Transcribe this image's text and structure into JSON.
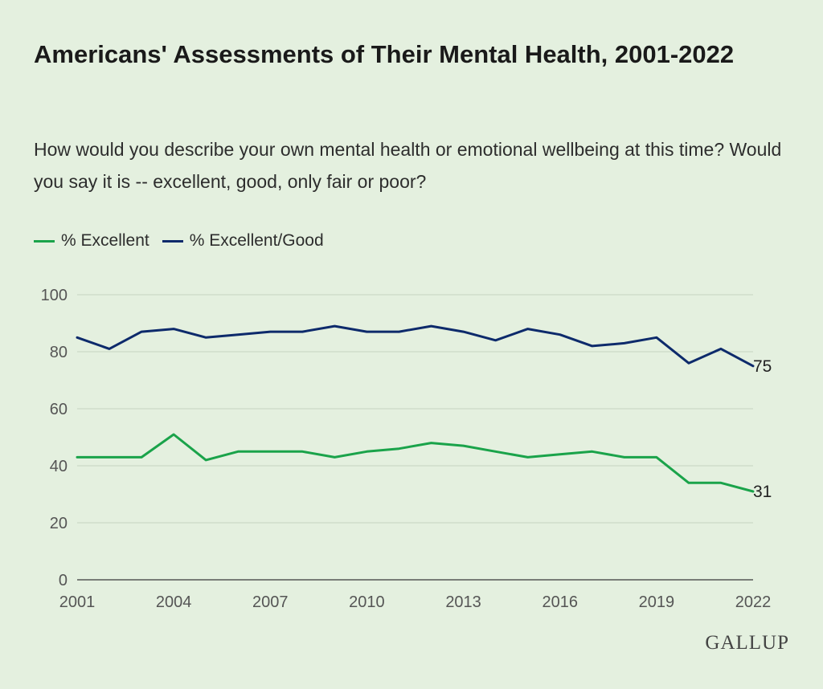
{
  "chart_data": {
    "type": "line",
    "title": "Americans' Assessments of Their Mental Health, 2001-2022",
    "subtitle": "How would you describe your own mental health or emotional wellbeing at this time? Would you say it is -- excellent, good, only fair or poor?",
    "xlabel": "",
    "ylabel": "",
    "x": [
      2001,
      2002,
      2003,
      2004,
      2005,
      2006,
      2007,
      2008,
      2009,
      2010,
      2011,
      2012,
      2013,
      2014,
      2015,
      2016,
      2017,
      2018,
      2019,
      2020,
      2021,
      2022
    ],
    "xticks": [
      "2001",
      "2004",
      "2007",
      "2010",
      "2013",
      "2016",
      "2019",
      "2022"
    ],
    "yticks": [
      "0",
      "20",
      "40",
      "60",
      "80",
      "100"
    ],
    "xlim": [
      2001,
      2022
    ],
    "ylim": [
      0,
      100
    ],
    "grid": true,
    "legend_position": "top-left",
    "series": [
      {
        "name": "% Excellent",
        "color": "#1aa34a",
        "values": [
          43,
          43,
          43,
          51,
          42,
          45,
          45,
          45,
          43,
          45,
          46,
          48,
          47,
          45,
          43,
          44,
          45,
          43,
          43,
          34,
          34,
          31
        ],
        "end_label": "31"
      },
      {
        "name": "% Excellent/Good",
        "color": "#0d2a6b",
        "values": [
          85,
          81,
          87,
          88,
          85,
          86,
          87,
          87,
          89,
          87,
          87,
          89,
          87,
          84,
          88,
          86,
          82,
          83,
          85,
          76,
          81,
          75
        ],
        "end_label": "75"
      }
    ]
  },
  "brand": {
    "logo_text": "GALLUP",
    "background": "#e4f0df"
  }
}
